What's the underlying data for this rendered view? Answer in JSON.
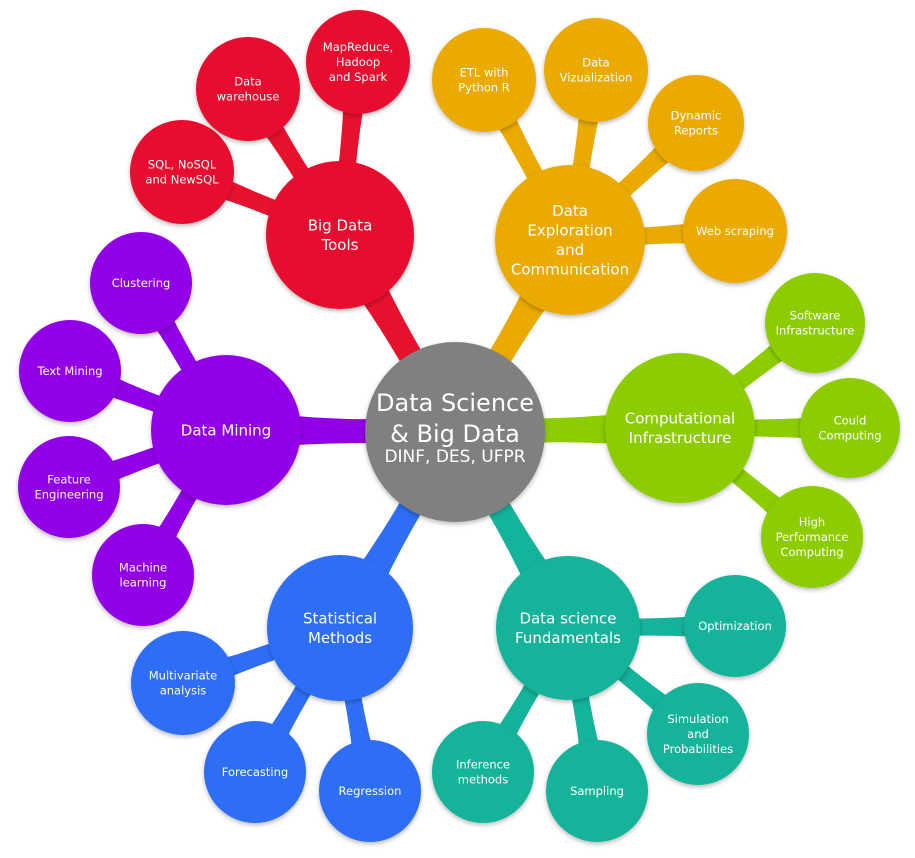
{
  "center": {
    "title_lines": [
      "Data Science",
      "& Big Data"
    ],
    "subtitle": "DINF, DES, UFPR",
    "color": "#808080"
  },
  "branches": [
    {
      "id": "big-data-tools",
      "label_lines": [
        "Big Data",
        "Tools"
      ],
      "color": "#E8112D",
      "leaves": [
        {
          "id": "sql-nosql",
          "label_lines": [
            "SQL, NoSQL",
            "and NewSQL"
          ]
        },
        {
          "id": "data-warehouse",
          "label_lines": [
            "Data",
            "warehouse"
          ]
        },
        {
          "id": "mapreduce",
          "label_lines": [
            "MapReduce,",
            "Hadoop",
            "and Spark"
          ]
        }
      ]
    },
    {
      "id": "data-exploration",
      "label_lines": [
        "Data",
        "Exploration",
        "and",
        "Communication"
      ],
      "color": "#EAAA00",
      "leaves": [
        {
          "id": "etl",
          "label_lines": [
            "ETL with",
            "Python R"
          ]
        },
        {
          "id": "data-viz",
          "label_lines": [
            "Data",
            "Vizualization"
          ]
        },
        {
          "id": "dynamic-reports",
          "label_lines": [
            "Dynamic",
            "Reports"
          ]
        },
        {
          "id": "web-scraping",
          "label_lines": [
            "Web scraping"
          ]
        }
      ]
    },
    {
      "id": "computational-infra",
      "label_lines": [
        "Computational",
        "Infrastructure"
      ],
      "color": "#8CCC00",
      "leaves": [
        {
          "id": "software-infra",
          "label_lines": [
            "Software",
            "Infrastructure"
          ]
        },
        {
          "id": "cloud-computing",
          "label_lines": [
            "Could",
            "Computing"
          ]
        },
        {
          "id": "hpc",
          "label_lines": [
            "High",
            "Performance",
            "Computing"
          ]
        }
      ]
    },
    {
      "id": "ds-fundamentals",
      "label_lines": [
        "Data science",
        "Fundamentals"
      ],
      "color": "#14B39B",
      "leaves": [
        {
          "id": "optimization",
          "label_lines": [
            "Optimization"
          ]
        },
        {
          "id": "simulation",
          "label_lines": [
            "Simulation",
            "and",
            "Probabilities"
          ]
        },
        {
          "id": "sampling",
          "label_lines": [
            "Sampling"
          ]
        },
        {
          "id": "inference",
          "label_lines": [
            "Inference",
            "methods"
          ]
        }
      ]
    },
    {
      "id": "statistical-methods",
      "label_lines": [
        "Statistical",
        "Methods"
      ],
      "color": "#2E6EF5",
      "leaves": [
        {
          "id": "multivariate",
          "label_lines": [
            "Multivariate",
            "analysis"
          ]
        },
        {
          "id": "forecasting",
          "label_lines": [
            "Forecasting"
          ]
        },
        {
          "id": "regression",
          "label_lines": [
            "Regression"
          ]
        }
      ]
    },
    {
      "id": "data-mining",
      "label_lines": [
        "Data Mining"
      ],
      "color": "#9200E8",
      "leaves": [
        {
          "id": "clustering",
          "label_lines": [
            "Clustering"
          ]
        },
        {
          "id": "text-mining",
          "label_lines": [
            "Text Mining"
          ]
        },
        {
          "id": "feature-engineering",
          "label_lines": [
            "Feature",
            "Engineering"
          ]
        },
        {
          "id": "machine-learning",
          "label_lines": [
            "Machine",
            "learning"
          ]
        }
      ]
    }
  ]
}
